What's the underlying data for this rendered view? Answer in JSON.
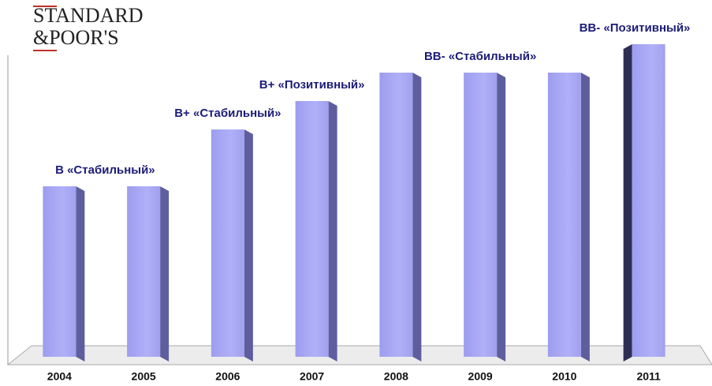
{
  "logo": {
    "line1": "STANDARD",
    "line2": "&POOR'S"
  },
  "chart_data": {
    "type": "bar",
    "categories": [
      "2004",
      "2005",
      "2006",
      "2007",
      "2008",
      "2009",
      "2010",
      "2011"
    ],
    "values": [
      6,
      6,
      8,
      9,
      10,
      10,
      10,
      11
    ],
    "color": "#a3a3f2",
    "ylim": [
      0,
      12
    ],
    "annotations": [
      {
        "text": "B «Стабильный»",
        "at": "2004"
      },
      {
        "text": "B+ «Стабильный»",
        "at": "2006"
      },
      {
        "text": "B+ «Позитивный»",
        "at": "2007"
      },
      {
        "text": "BB- «Стабильный»",
        "at": "2009"
      },
      {
        "text": "BB- «Позитивный»",
        "at": "2011"
      }
    ]
  }
}
